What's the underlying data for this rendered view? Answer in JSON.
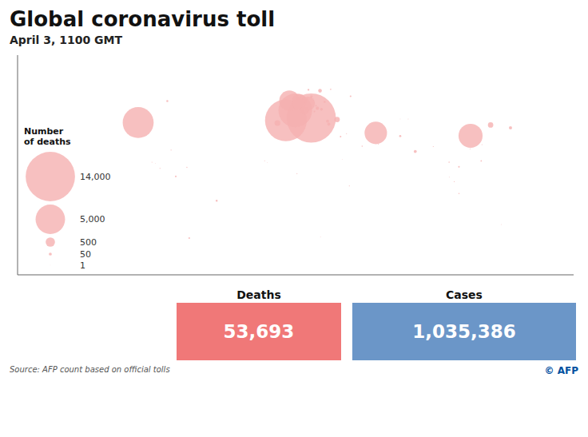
{
  "chart_data": {
    "type": "scatter",
    "title": "Global coronavirus toll",
    "subtitle": "April 3, 1100 GMT",
    "x": [
      12.5,
      -3.7,
      2.3,
      -98.0,
      114.2,
      53.7,
      -1.5,
      4.9,
      10.4,
      4.5,
      8.2,
      -9.1,
      29.0,
      127.0,
      18.1,
      139.7,
      16.4,
      78.9,
      22.9,
      23.7,
      19.0,
      12.6,
      69.3,
      -47.9,
      -79.4,
      21.0,
      14.5,
      10.7,
      -65.4,
      37.6,
      -74.0,
      106.8,
      15.5,
      31.2,
      121.0,
      100.5,
      24.9,
      45.0,
      106.8,
      -66.9,
      -77.0,
      103.8,
      35.0,
      121.5,
      90.4,
      3.4,
      55.3,
      113.9,
      -17.3,
      36.8,
      -89.2,
      -84.1,
      133.9,
      100.6,
      18.4,
      74.4,
      -15.6,
      -86.9,
      32.5,
      69.3
    ],
    "values": [
      41.9,
      40.4,
      46.8,
      39.0,
      30.6,
      32.4,
      53.0,
      52.4,
      51.2,
      50.9,
      46.8,
      38.7,
      41.0,
      37.5,
      59.3,
      35.7,
      48.2,
      20.6,
      39.9,
      38.0,
      47.5,
      55.7,
      30.4,
      -10.8,
      52.7,
      52.2,
      46.1,
      59.9,
      -34.6,
      55.8,
      4.7,
      10.8,
      49.8,
      30.1,
      14.6,
      13.8,
      60.2,
      24.0,
      -6.2,
      10.5,
      21.5,
      1.4,
      32.0,
      25.0,
      23.7,
      6.5,
      25.2,
      22.3,
      14.7,
      -1.3,
      13.8,
      9.9,
      -25.9,
      4.2,
      -33.9,
      41.3,
      13.5,
      12.9,
      15.6,
      41.3
    ],
    "sizes": [
      13915,
      10003,
      6507,
      5500,
      3322,
      2898,
      2352,
      1341,
      1107,
      828,
      378,
      187,
      168,
      165,
      77,
      58,
      58,
      50,
      49,
      49,
      40,
      34,
      26,
      25,
      25,
      22,
      18,
      18,
      17,
      17,
      16,
      16,
      15,
      14,
      12,
      10,
      10,
      8,
      8,
      7,
      7,
      6,
      5,
      5,
      5,
      5,
      4,
      4,
      4,
      4,
      4,
      4,
      3,
      3,
      3,
      3,
      2,
      2,
      2,
      2
    ],
    "color": "#f5b0b0",
    "xlim": [
      -175,
      180
    ],
    "ylim": [
      -58,
      82
    ],
    "tick_labels": false,
    "size_legend": {
      "title": "Number\nof deaths",
      "values": [
        14000,
        5000,
        500,
        50,
        1
      ],
      "labels": [
        "14,000",
        "5,000",
        "500",
        "50",
        "1"
      ]
    },
    "stats": [
      {
        "label": "Deaths",
        "value": 53693,
        "value_label": "53,693",
        "color": "#f07878"
      },
      {
        "label": "Cases",
        "value": 1035386,
        "value_label": "1,035,386",
        "color": "#6b96c8"
      }
    ],
    "source": "Source: AFP count based on official tolls",
    "credit": "© AFP"
  }
}
